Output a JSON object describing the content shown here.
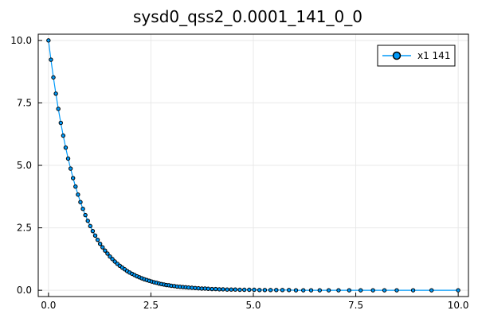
{
  "chart_data": {
    "type": "line",
    "title": "sysd0_qss2_0.0001_141_0_0",
    "xlabel": "",
    "ylabel": "",
    "xlim": [
      -0.25,
      10.25
    ],
    "ylim": [
      -0.25,
      10.25
    ],
    "xticks": [
      0,
      2.5,
      5,
      7.5,
      10
    ],
    "xtick_labels": [
      "0.0",
      "2.5",
      "5.0",
      "7.5",
      "10.0"
    ],
    "yticks": [
      0,
      2.5,
      5,
      7.5,
      10
    ],
    "ytick_labels": [
      "0.0",
      "2.5",
      "5.0",
      "7.5",
      "10.0"
    ],
    "grid": true,
    "legend_position": "top-right",
    "series": [
      {
        "name": "x1 141",
        "color": "#009AFA",
        "marker": "circle",
        "x": [
          0,
          0.06,
          0.12,
          0.18,
          0.24,
          0.3,
          0.36,
          0.42,
          0.48,
          0.54,
          0.6,
          0.66,
          0.72,
          0.78,
          0.84,
          0.9,
          0.96,
          1.02,
          1.08,
          1.14,
          1.2,
          1.26,
          1.32,
          1.38,
          1.44,
          1.5,
          1.56,
          1.62,
          1.68,
          1.74,
          1.8,
          1.86,
          1.92,
          1.98,
          2.04,
          2.1,
          2.16,
          2.22,
          2.28,
          2.34,
          2.4,
          2.46,
          2.52,
          2.58,
          2.64,
          2.7,
          2.76,
          2.82,
          2.88,
          2.94,
          3.0,
          3.07,
          3.14,
          3.21,
          3.28,
          3.35,
          3.42,
          3.5,
          3.58,
          3.66,
          3.74,
          3.82,
          3.9,
          3.99,
          4.08,
          4.17,
          4.26,
          4.36,
          4.46,
          4.56,
          4.67,
          4.78,
          4.9,
          5.02,
          5.15,
          5.28,
          5.42,
          5.56,
          5.71,
          5.87,
          6.04,
          6.22,
          6.41,
          6.62,
          6.84,
          7.08,
          7.34,
          7.62,
          7.92,
          8.2,
          8.5,
          8.9,
          9.35,
          10.0
        ],
        "y": [
          10.0,
          9.23,
          8.52,
          7.87,
          7.26,
          6.7,
          6.19,
          5.71,
          5.27,
          4.87,
          4.49,
          4.15,
          3.83,
          3.53,
          3.26,
          3.01,
          2.78,
          2.57,
          2.37,
          2.19,
          2.02,
          1.86,
          1.72,
          1.59,
          1.47,
          1.35,
          1.25,
          1.15,
          1.06,
          0.98,
          0.91,
          0.84,
          0.77,
          0.71,
          0.66,
          0.61,
          0.56,
          0.52,
          0.48,
          0.44,
          0.41,
          0.38,
          0.35,
          0.32,
          0.3,
          0.27,
          0.25,
          0.23,
          0.21,
          0.2,
          0.18,
          0.17,
          0.15,
          0.14,
          0.13,
          0.12,
          0.11,
          0.1,
          0.09,
          0.08,
          0.07,
          0.07,
          0.06,
          0.05,
          0.05,
          0.04,
          0.04,
          0.03,
          0.03,
          0.03,
          0.02,
          0.02,
          0.02,
          0.02,
          0.01,
          0.01,
          0.01,
          0.01,
          0.01,
          0.01,
          0.0,
          0.0,
          0.0,
          0.0,
          0.0,
          0.0,
          0.0,
          0.0,
          0.0,
          0.0,
          0.0,
          0.0,
          0.0,
          0.0
        ]
      }
    ]
  }
}
